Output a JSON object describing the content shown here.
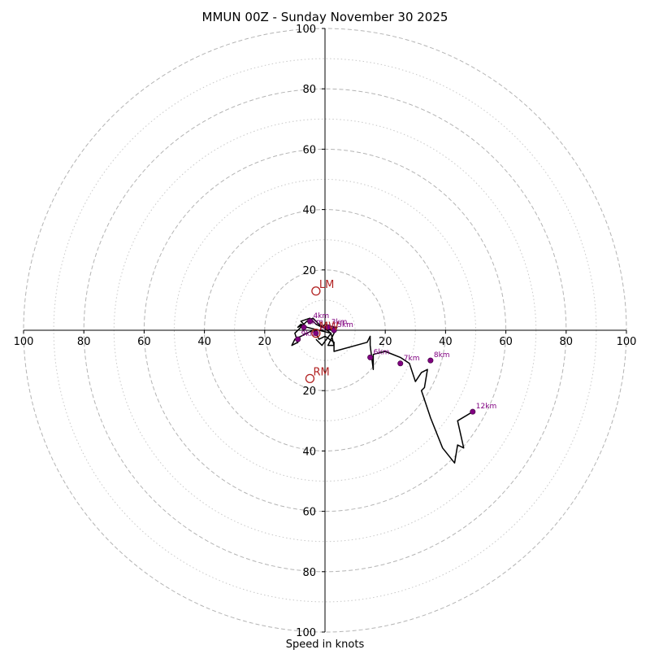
{
  "chart_data": {
    "type": "hodograph",
    "title": "MMUN 00Z - Sunday November 30 2025",
    "xlabel": "Speed in knots",
    "units": "knots",
    "axis_range": [
      -100,
      100
    ],
    "ring_values_major": [
      20,
      40,
      60,
      80,
      100
    ],
    "ring_values_minor": [
      10,
      30,
      50,
      70,
      90
    ],
    "x_tick_labels": [
      "100",
      "80",
      "60",
      "40",
      "20",
      "20",
      "40",
      "60",
      "80",
      "100"
    ],
    "x_tick_values": [
      -100,
      -80,
      -60,
      -40,
      -20,
      20,
      40,
      60,
      80,
      100
    ],
    "y_tick_labels": [
      "100",
      "80",
      "60",
      "40",
      "20",
      "20",
      "40",
      "60",
      "80",
      "100"
    ],
    "y_tick_values": [
      100,
      80,
      60,
      40,
      20,
      -20,
      -40,
      -60,
      -80,
      -100
    ],
    "hodograph_line": {
      "color": "#000000",
      "u": [
        -3,
        -1,
        2,
        -6,
        -8,
        -9,
        -7,
        -8,
        -5,
        -3,
        -1,
        1,
        2,
        -1,
        0,
        3,
        4,
        3,
        1,
        3,
        2,
        -2,
        -4,
        -6,
        -8,
        -10,
        -9,
        -11,
        -10,
        -8,
        -6,
        -4,
        -3,
        -2,
        0,
        3,
        3,
        14,
        15,
        15,
        16,
        16,
        20,
        25,
        28,
        30,
        32,
        34,
        33,
        32,
        35,
        39,
        43,
        44,
        46,
        44,
        49
      ],
      "v": [
        -3,
        -5,
        -1,
        1,
        2,
        1,
        2,
        3,
        4,
        2,
        1,
        1,
        0,
        1,
        2,
        1,
        1,
        -1,
        -5,
        -5,
        -1,
        2,
        4,
        3,
        1,
        -1,
        -4,
        -5,
        -3,
        -2,
        -1,
        0,
        -1,
        -3,
        -2,
        -4,
        -7,
        -4,
        -2,
        -5,
        -13,
        -8,
        -7,
        -9,
        -11,
        -17,
        -14,
        -13,
        -19,
        -20,
        -29,
        -39,
        -44,
        -38,
        -39,
        -30,
        -27
      ]
    },
    "height_markers": {
      "color": "#800080",
      "points": [
        {
          "label": "1km",
          "u": -7,
          "v": 1
        },
        {
          "label": "2km",
          "u": -3,
          "v": -1
        },
        {
          "label": "3km",
          "u": 1,
          "v": 1
        },
        {
          "label": "4km",
          "u": -5,
          "v": 3
        },
        {
          "label": "5km",
          "u": 3,
          "v": 0
        },
        {
          "label": "6km",
          "u": 15,
          "v": -9
        },
        {
          "label": "7km",
          "u": 25,
          "v": -11
        },
        {
          "label": "8km",
          "u": 35,
          "v": -10
        },
        {
          "label": "12km",
          "u": 49,
          "v": -27
        },
        {
          "label": "9km",
          "u": -9,
          "v": -3
        }
      ]
    },
    "storm_motion": {
      "color": "#b22222",
      "points": [
        {
          "label": "LM",
          "u": -3,
          "v": 13
        },
        {
          "label": "RM",
          "u": -5,
          "v": -16
        },
        {
          "label": "MW",
          "u": -3,
          "v": -1
        }
      ]
    }
  }
}
